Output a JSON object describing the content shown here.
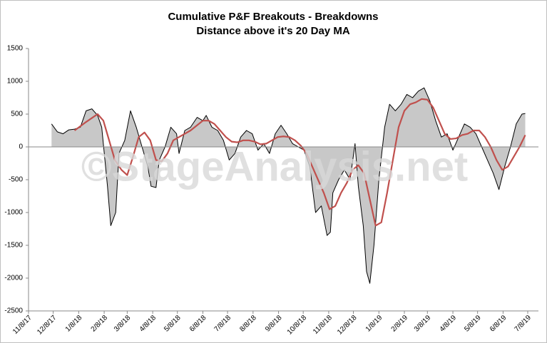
{
  "chart_data": {
    "type": "line",
    "title": "Cumulative P&F Breakouts - Breakdowns",
    "subtitle": "Distance above it's 20 Day MA",
    "watermark": "©StageAnalysis.net",
    "ylim": [
      -2500,
      1500
    ],
    "yticks": [
      -2500,
      -2000,
      -1500,
      -1000,
      -500,
      0,
      500,
      1000,
      1500
    ],
    "xlim": [
      "11/8/17",
      "7/8/19"
    ],
    "xticks": [
      "11/8/17",
      "12/8/17",
      "1/8/18",
      "2/8/18",
      "3/8/18",
      "4/8/18",
      "5/8/18",
      "6/8/18",
      "7/8/18",
      "8/8/18",
      "9/8/18",
      "10/8/18",
      "11/8/18",
      "12/8/18",
      "1/8/19",
      "2/8/19",
      "3/8/19",
      "4/8/19",
      "5/8/19",
      "6/8/19",
      "7/8/19"
    ],
    "series": [
      {
        "color": "#000000",
        "fill": "#c8c8c8",
        "x": [
          "12/6/17",
          "12/13/17",
          "12/20/17",
          "12/27/17",
          "1/3/18",
          "1/10/18",
          "1/17/18",
          "1/24/18",
          "1/31/18",
          "2/5/18",
          "2/12/18",
          "2/16/18",
          "2/22/18",
          "2/26/18",
          "3/5/18",
          "3/12/18",
          "3/19/18",
          "3/26/18",
          "4/2/18",
          "4/6/18",
          "4/12/18",
          "4/16/18",
          "4/23/18",
          "4/30/18",
          "5/7/18",
          "5/10/18",
          "5/17/18",
          "5/24/18",
          "6/1/18",
          "6/8/18",
          "6/12/18",
          "6/19/18",
          "6/26/18",
          "7/3/18",
          "7/10/18",
          "7/17/18",
          "7/24/18",
          "7/31/18",
          "8/7/18",
          "8/14/18",
          "8/21/18",
          "8/28/18",
          "9/4/18",
          "9/11/18",
          "9/18/18",
          "9/25/18",
          "10/2/18",
          "10/9/18",
          "10/16/18",
          "10/23/18",
          "10/30/18",
          "11/6/18",
          "11/10/18",
          "11/13/18",
          "11/20/18",
          "11/27/18",
          "12/4/18",
          "12/10/18",
          "12/14/18",
          "12/20/18",
          "12/24/18",
          "12/28/18",
          "1/2/19",
          "1/8/19",
          "1/15/19",
          "1/21/19",
          "1/28/19",
          "2/4/19",
          "2/11/19",
          "2/18/19",
          "2/25/19",
          "3/4/19",
          "3/11/19",
          "3/18/19",
          "3/25/19",
          "4/1/19",
          "4/8/19",
          "4/15/19",
          "4/22/19",
          "4/29/19",
          "5/6/19",
          "5/13/19",
          "5/20/19",
          "5/27/19",
          "6/3/19",
          "6/10/19",
          "6/17/19",
          "6/24/19",
          "7/1/19",
          "7/5/19"
        ],
        "values": [
          350,
          230,
          200,
          260,
          270,
          300,
          550,
          580,
          480,
          300,
          -600,
          -1200,
          -1000,
          -100,
          100,
          550,
          300,
          0,
          -300,
          -600,
          -620,
          -200,
          0,
          300,
          200,
          -100,
          250,
          300,
          450,
          400,
          480,
          300,
          250,
          100,
          -200,
          -100,
          150,
          250,
          200,
          -50,
          50,
          -100,
          200,
          330,
          200,
          50,
          0,
          -50,
          -300,
          -1000,
          -900,
          -1350,
          -1300,
          -700,
          -500,
          -350,
          -500,
          50,
          -600,
          -1200,
          -1900,
          -2080,
          -1500,
          -500,
          300,
          650,
          550,
          650,
          800,
          750,
          850,
          900,
          700,
          400,
          150,
          200,
          -50,
          150,
          350,
          300,
          200,
          0,
          -200,
          -400,
          -650,
          -300,
          0,
          350,
          500,
          510
        ]
      },
      {
        "color": "#c0504d",
        "x": [
          "1/3/18",
          "1/17/18",
          "1/31/18",
          "2/7/18",
          "2/14/18",
          "2/21/18",
          "3/1/18",
          "3/8/18",
          "3/15/18",
          "3/22/18",
          "3/29/18",
          "4/5/18",
          "4/12/18",
          "4/19/18",
          "4/26/18",
          "5/3/18",
          "5/10/18",
          "5/17/18",
          "5/24/18",
          "6/1/18",
          "6/8/18",
          "6/15/18",
          "6/22/18",
          "6/29/18",
          "7/6/18",
          "7/13/18",
          "7/20/18",
          "7/27/18",
          "8/3/18",
          "8/10/18",
          "8/17/18",
          "8/24/18",
          "8/31/18",
          "9/7/18",
          "9/14/18",
          "9/21/18",
          "9/28/18",
          "10/5/18",
          "10/12/18",
          "10/19/18",
          "10/26/18",
          "11/2/18",
          "11/9/18",
          "11/16/18",
          "11/23/18",
          "11/30/18",
          "12/7/18",
          "12/14/18",
          "12/21/18",
          "12/28/18",
          "1/4/19",
          "1/11/19",
          "1/18/19",
          "1/25/19",
          "2/1/19",
          "2/8/19",
          "2/15/19",
          "2/22/19",
          "3/1/19",
          "3/8/19",
          "3/15/19",
          "3/22/19",
          "3/29/19",
          "4/5/19",
          "4/12/19",
          "4/19/19",
          "4/26/19",
          "5/3/19",
          "5/10/19",
          "5/17/19",
          "5/24/19",
          "5/31/19",
          "6/7/19",
          "6/14/19",
          "6/21/19",
          "6/28/19",
          "7/5/19"
        ],
        "values": [
          250,
          380,
          500,
          400,
          100,
          -200,
          -350,
          -430,
          -150,
          150,
          220,
          100,
          -200,
          -220,
          -100,
          100,
          150,
          200,
          250,
          330,
          400,
          400,
          350,
          250,
          150,
          80,
          70,
          100,
          100,
          80,
          40,
          50,
          100,
          150,
          160,
          150,
          100,
          20,
          -100,
          -300,
          -500,
          -700,
          -950,
          -900,
          -700,
          -550,
          -350,
          -280,
          -400,
          -800,
          -1200,
          -1150,
          -700,
          -200,
          300,
          550,
          650,
          680,
          730,
          720,
          600,
          400,
          200,
          120,
          130,
          180,
          200,
          250,
          250,
          150,
          0,
          -200,
          -350,
          -300,
          -150,
          0,
          180
        ]
      }
    ]
  }
}
